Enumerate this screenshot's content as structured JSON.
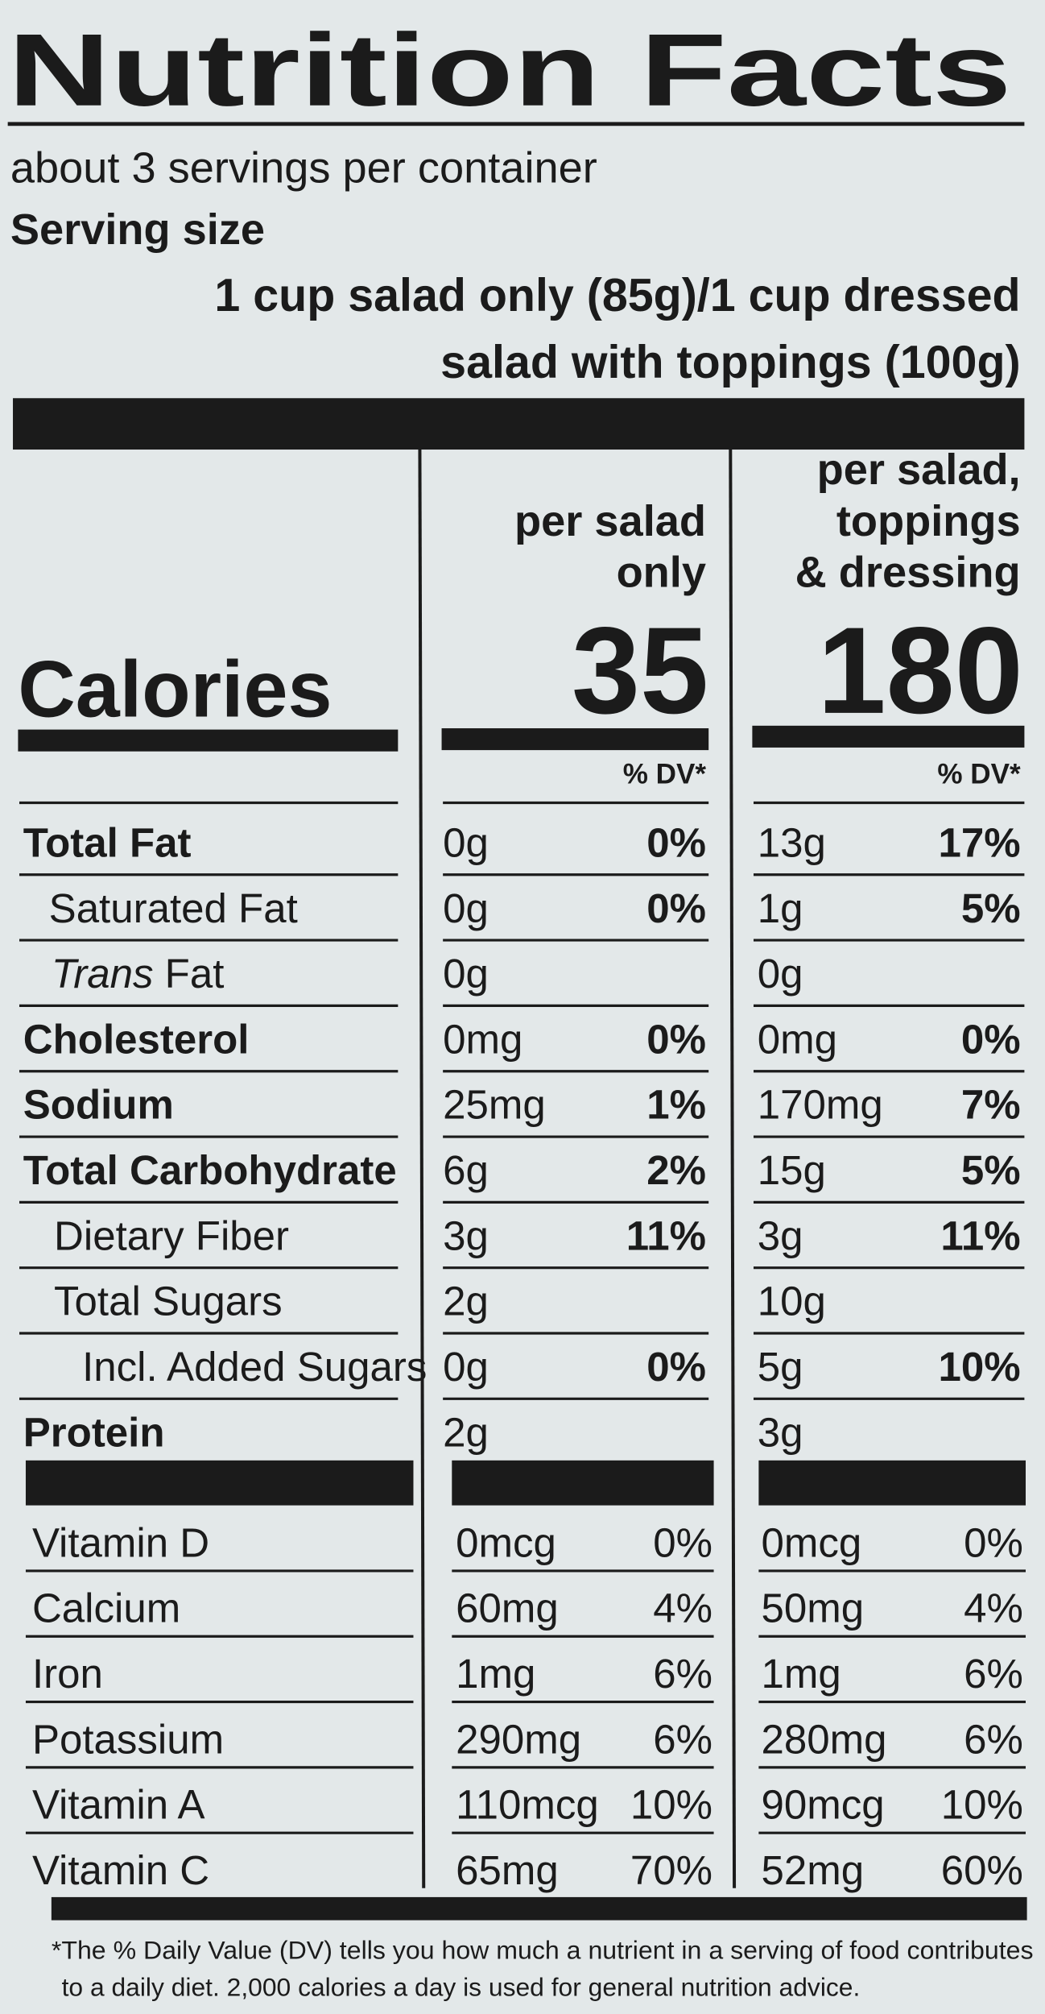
{
  "title": "Nutrition Facts",
  "servings": "about 3 servings per container",
  "serving_size_label": "Serving size",
  "serving_size": [
    "1 cup salad only (85g)/1 cup dressed",
    "salad with toppings (100g)"
  ],
  "columns": [
    {
      "header": [
        "per salad",
        "only"
      ],
      "calories": "35",
      "dv_header": "% DV*"
    },
    {
      "header": [
        "per salad,",
        "toppings",
        "& dressing"
      ],
      "calories": "180",
      "dv_header": "% DV*"
    }
  ],
  "calories_label": "Calories",
  "nutrients": [
    {
      "name": "Total Fat",
      "bold": true,
      "values": [
        [
          "0g",
          "0%"
        ],
        [
          "13g",
          "17%"
        ]
      ]
    },
    {
      "name": "Saturated Fat",
      "bold": false,
      "values": [
        [
          "0g",
          "0%"
        ],
        [
          "1g",
          "5%"
        ]
      ]
    },
    {
      "name_italic": "Trans",
      "name": "Fat",
      "bold": false,
      "values": [
        [
          "0g",
          null
        ],
        [
          "0g",
          null
        ]
      ]
    },
    {
      "name": "Cholesterol",
      "bold": true,
      "values": [
        [
          "0mg",
          "0%"
        ],
        [
          "0mg",
          "0%"
        ]
      ]
    },
    {
      "name": "Sodium",
      "bold": true,
      "values": [
        [
          "25mg",
          "1%"
        ],
        [
          "170mg",
          "7%"
        ]
      ]
    },
    {
      "name": "Total Carbohydrate",
      "bold": true,
      "values": [
        [
          "6g",
          "2%"
        ],
        [
          "15g",
          "5%"
        ]
      ]
    },
    {
      "name": "Dietary Fiber",
      "bold": false,
      "values": [
        [
          "3g",
          "11%"
        ],
        [
          "3g",
          "11%"
        ]
      ]
    },
    {
      "name": "Total Sugars",
      "bold": false,
      "values": [
        [
          "2g",
          null
        ],
        [
          "10g",
          null
        ]
      ]
    },
    {
      "name": "Incl. Added Sugars",
      "bold": false,
      "values": [
        [
          "0g",
          "0%"
        ],
        [
          "5g",
          "10%"
        ]
      ]
    },
    {
      "name": "Protein",
      "bold": true,
      "values": [
        [
          "2g",
          null
        ],
        [
          "3g",
          null
        ]
      ]
    }
  ],
  "vitamins": [
    {
      "name": "Vitamin D",
      "values": [
        [
          "0mcg",
          "0%"
        ],
        [
          "0mcg",
          "0%"
        ]
      ]
    },
    {
      "name": "Calcium",
      "values": [
        [
          "60mg",
          "4%"
        ],
        [
          "50mg",
          "4%"
        ]
      ]
    },
    {
      "name": "Iron",
      "values": [
        [
          "1mg",
          "6%"
        ],
        [
          "1mg",
          "6%"
        ]
      ]
    },
    {
      "name": "Potassium",
      "values": [
        [
          "290mg",
          "6%"
        ],
        [
          "280mg",
          "6%"
        ]
      ]
    },
    {
      "name": "Vitamin A",
      "values": [
        [
          "110mcg",
          "10%"
        ],
        [
          "90mcg",
          "10%"
        ]
      ]
    },
    {
      "name": "Vitamin C",
      "values": [
        [
          "65mg",
          "70%"
        ],
        [
          "52mg",
          "60%"
        ]
      ]
    }
  ],
  "footnote": [
    "*The % Daily Value (DV) tells you how much a nutrient in a serving of food contributes",
    "to a daily diet. 2,000 calories a day is used for general nutrition advice."
  ]
}
